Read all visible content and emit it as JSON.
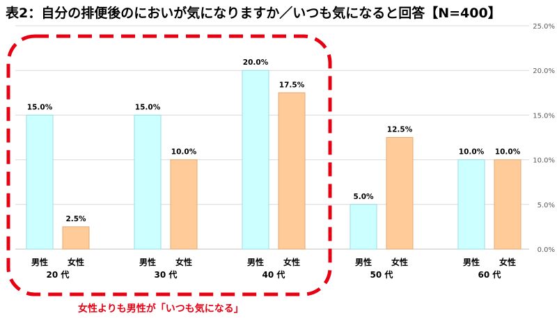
{
  "title": "表2：自分の排便後のにおいが気になりますか／いつも気になると回答【N=400】",
  "annotation": "女性よりも男性が「いつも気になる」",
  "chart_data": {
    "type": "bar",
    "categories": [
      "20代",
      "30代",
      "40代",
      "50代",
      "60代"
    ],
    "category_labels": [
      "20 代",
      "30 代",
      "40 代",
      "50 代",
      "60 代"
    ],
    "series": [
      {
        "name": "男性",
        "values": [
          15.0,
          15.0,
          20.0,
          5.0,
          10.0
        ],
        "fill": "#ccffff",
        "stroke": "#99dde6"
      },
      {
        "name": "女性",
        "values": [
          2.5,
          10.0,
          17.5,
          12.5,
          10.0
        ],
        "fill": "#ffcc99",
        "stroke": "#e6a873"
      }
    ],
    "data_labels": [
      [
        "15.0%",
        "15.0%",
        "20.0%",
        "5.0%",
        "10.0%"
      ],
      [
        "2.5%",
        "10.0%",
        "17.5%",
        "12.5%",
        "10.0%"
      ]
    ],
    "ylim": [
      0,
      25
    ],
    "y_ticks": [
      0,
      5,
      10,
      15,
      20,
      25
    ],
    "y_tick_labels": [
      "0.0%",
      "5.0%",
      "10.0%",
      "15.0%",
      "20.0%",
      "25.0%"
    ],
    "y_axis_side": "right",
    "grid": true,
    "highlight_groups": [
      "20代",
      "30代",
      "40代"
    ],
    "highlight_color": "#e60012"
  }
}
